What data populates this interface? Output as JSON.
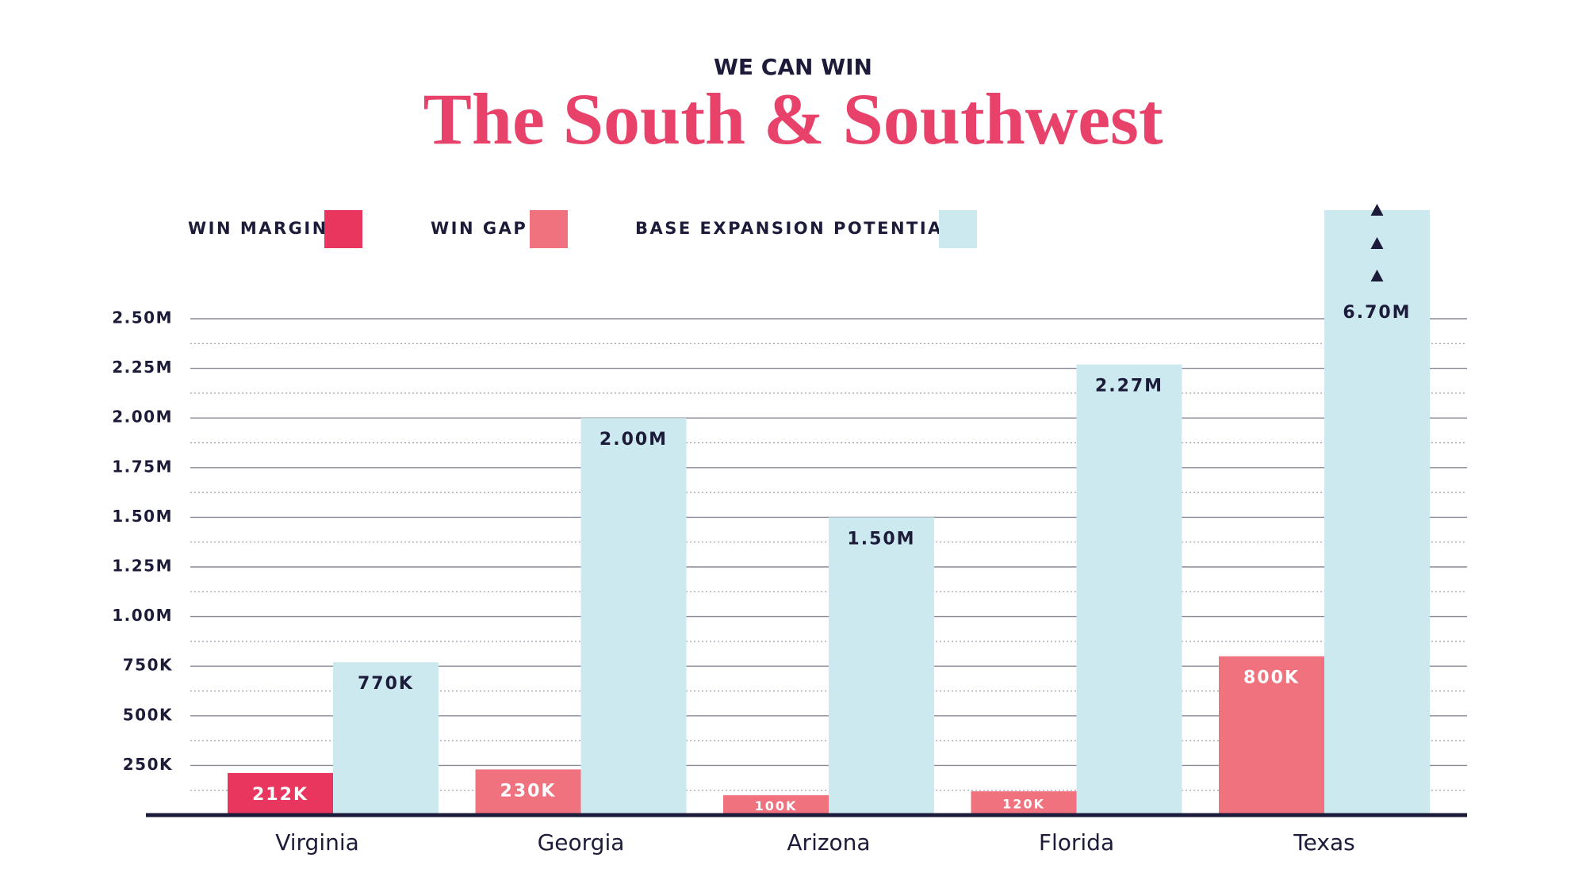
{
  "chart_data": {
    "type": "bar",
    "subtitle": "WE CAN WIN",
    "title": "The South & Southwest",
    "categories": [
      "Virginia",
      "Georgia",
      "Arizona",
      "Florida",
      "Texas"
    ],
    "series": [
      {
        "name": "WIN MARGIN",
        "color": "#e8365f",
        "values": [
          212000,
          null,
          null,
          null,
          null
        ],
        "value_labels": [
          "212K",
          null,
          null,
          null,
          null
        ]
      },
      {
        "name": "WIN GAP",
        "color": "#f0727e",
        "values": [
          null,
          230000,
          100000,
          120000,
          800000
        ],
        "value_labels": [
          null,
          "230K",
          "100K",
          "120K",
          "800K"
        ]
      },
      {
        "name": "BASE EXPANSION POTENTIAL",
        "color": "#cde9f0",
        "values": [
          770000,
          2000000,
          1500000,
          2270000,
          6700000
        ],
        "value_labels": [
          "770K",
          "2.00M",
          "1.50M",
          "2.27M",
          "6.70M"
        ]
      }
    ],
    "ylim": [
      0,
      2500000
    ],
    "yticks": [
      {
        "value": 250000,
        "label": "250K"
      },
      {
        "value": 500000,
        "label": "500K"
      },
      {
        "value": 750000,
        "label": "750K"
      },
      {
        "value": 1000000,
        "label": "1.00M"
      },
      {
        "value": 1250000,
        "label": "1.25M"
      },
      {
        "value": 1500000,
        "label": "1.50M"
      },
      {
        "value": 1750000,
        "label": "1.75M"
      },
      {
        "value": 2000000,
        "label": "2.00M"
      },
      {
        "value": 2250000,
        "label": "2.25M"
      },
      {
        "value": 2500000,
        "label": "2.50M"
      }
    ],
    "grid": true
  }
}
